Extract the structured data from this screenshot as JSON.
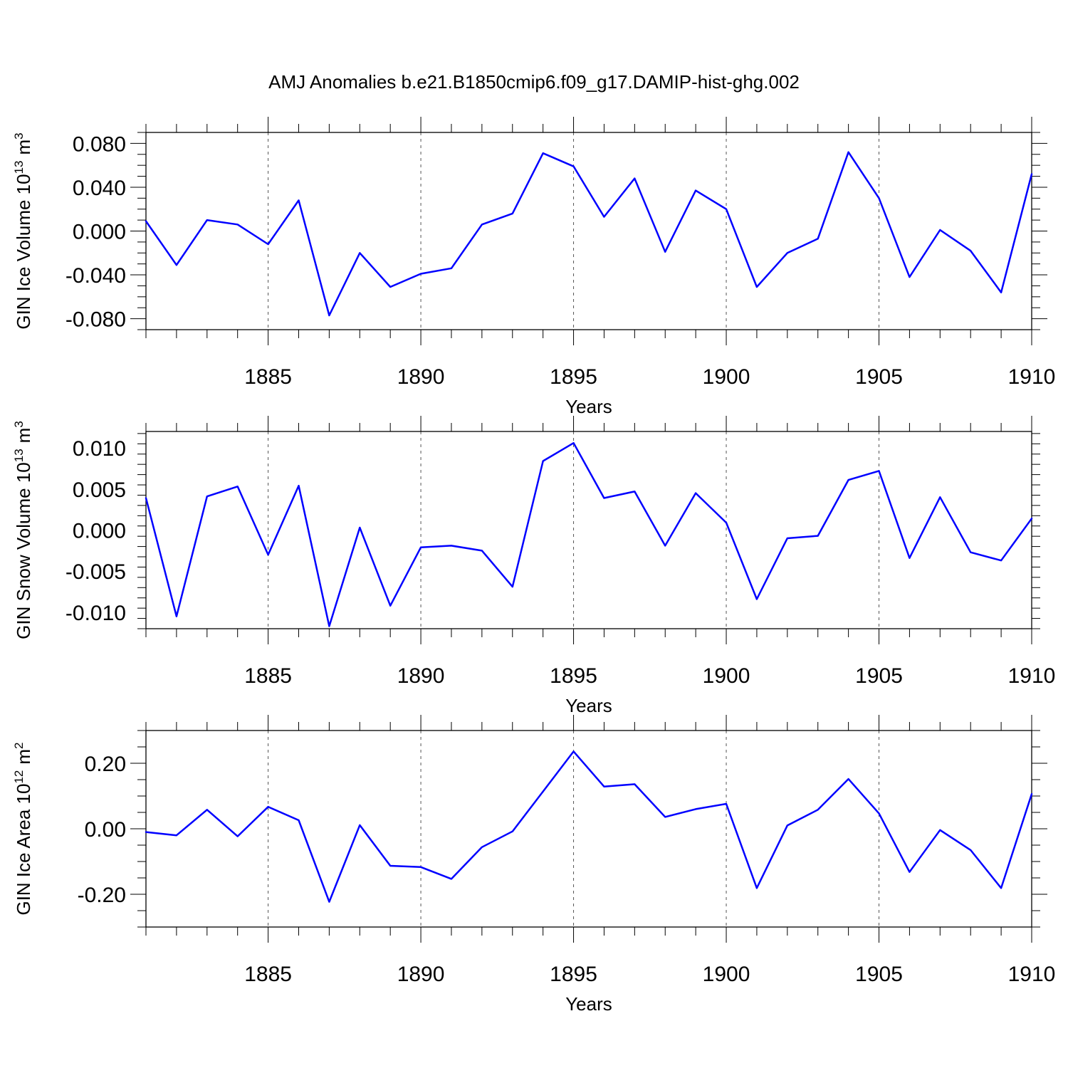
{
  "chart_data": {
    "title": "AMJ Anomalies b.e21.B1850cmip6.f09_g17.DAMIP-hist-ghg.002",
    "line_color": "#0000ff",
    "type": "line",
    "panels": [
      {
        "ylabel": {
          "main": "GIN Ice Volume 10",
          "sup_exp": "13",
          "unit": "m",
          "sup_unit": "3"
        },
        "xlabel": "Years",
        "xlim": [
          1881,
          1910
        ],
        "ylim": [
          -0.09,
          0.09
        ],
        "yticks": [
          -0.08,
          -0.04,
          0.0,
          0.04,
          0.08
        ],
        "ytick_labels": [
          "-0.080",
          "-0.040",
          "0.000",
          "0.040",
          "0.080"
        ],
        "xticks": [
          1885,
          1890,
          1895,
          1900,
          1905,
          1910
        ],
        "xtick_labels": [
          "1885",
          "1890",
          "1895",
          "1900",
          "1905",
          "1910"
        ],
        "x": [
          1881,
          1882,
          1883,
          1884,
          1885,
          1886,
          1887,
          1888,
          1889,
          1890,
          1891,
          1892,
          1893,
          1894,
          1895,
          1896,
          1897,
          1898,
          1899,
          1900,
          1901,
          1902,
          1903,
          1904,
          1905,
          1906,
          1907,
          1908,
          1909,
          1910
        ],
        "values": [
          0.009,
          -0.031,
          0.01,
          0.006,
          -0.012,
          0.028,
          -0.077,
          -0.02,
          -0.051,
          -0.039,
          -0.034,
          0.006,
          0.016,
          0.071,
          0.059,
          0.013,
          0.048,
          -0.019,
          0.037,
          0.02,
          -0.051,
          -0.02,
          -0.007,
          0.072,
          0.03,
          -0.042,
          0.001,
          -0.018,
          -0.056,
          0.052
        ]
      },
      {
        "ylabel": {
          "main": "GIN Snow Volume 10",
          "sup_exp": "13",
          "unit": "m",
          "sup_unit": "3"
        },
        "xlabel": "Years",
        "xlim": [
          1881,
          1910
        ],
        "ylim": [
          -0.012,
          0.012
        ],
        "yticks": [
          -0.01,
          -0.005,
          0.0,
          0.005,
          0.01
        ],
        "ytick_labels": [
          "-0.010",
          "-0.005",
          "0.000",
          "0.005",
          "0.010"
        ],
        "xticks": [
          1885,
          1890,
          1895,
          1900,
          1905,
          1910
        ],
        "xtick_labels": [
          "1885",
          "1890",
          "1895",
          "1900",
          "1905",
          "1910"
        ],
        "x": [
          1881,
          1882,
          1883,
          1884,
          1885,
          1886,
          1887,
          1888,
          1889,
          1890,
          1891,
          1892,
          1893,
          1894,
          1895,
          1896,
          1897,
          1898,
          1899,
          1900,
          1901,
          1902,
          1903,
          1904,
          1905,
          1906,
          1907,
          1908,
          1909,
          1910
        ],
        "values": [
          0.0039,
          -0.0105,
          0.0041,
          0.0053,
          -0.003,
          0.0054,
          -0.0117,
          0.0003,
          -0.0092,
          -0.0021,
          -0.0019,
          -0.0025,
          -0.0069,
          0.0084,
          0.0106,
          0.0039,
          0.0047,
          -0.0019,
          0.0045,
          0.0009,
          -0.0084,
          -0.001,
          -0.0007,
          0.0061,
          0.0072,
          -0.0034,
          0.004,
          -0.0027,
          -0.0037,
          0.0014
        ]
      },
      {
        "ylabel": {
          "main": "GIN Ice Area 10",
          "sup_exp": "12",
          "unit": "m",
          "sup_unit": "2"
        },
        "xlabel": "Years",
        "xlim": [
          1881,
          1910
        ],
        "ylim": [
          -0.3,
          0.3
        ],
        "yticks": [
          -0.2,
          0.0,
          0.2
        ],
        "ytick_labels": [
          "-0.20",
          "0.00",
          "0.20"
        ],
        "xticks": [
          1885,
          1890,
          1895,
          1900,
          1905,
          1910
        ],
        "xtick_labels": [
          "1885",
          "1890",
          "1895",
          "1900",
          "1905",
          "1910"
        ],
        "x": [
          1881,
          1882,
          1883,
          1884,
          1885,
          1886,
          1887,
          1888,
          1889,
          1890,
          1891,
          1892,
          1893,
          1894,
          1895,
          1896,
          1897,
          1898,
          1899,
          1900,
          1901,
          1902,
          1903,
          1904,
          1905,
          1906,
          1907,
          1908,
          1909,
          1910
        ],
        "values": [
          -0.01,
          -0.02,
          0.058,
          -0.023,
          0.067,
          0.026,
          -0.223,
          0.011,
          -0.113,
          -0.117,
          -0.153,
          -0.056,
          -0.008,
          0.114,
          0.236,
          0.129,
          0.136,
          0.036,
          0.06,
          0.076,
          -0.181,
          0.01,
          0.058,
          0.152,
          0.047,
          -0.132,
          -0.004,
          -0.065,
          -0.181,
          0.106
        ]
      }
    ]
  }
}
